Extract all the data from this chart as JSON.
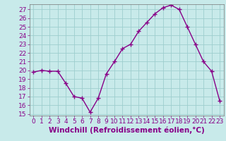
{
  "hours": [
    0,
    1,
    2,
    3,
    4,
    5,
    6,
    7,
    8,
    9,
    10,
    11,
    12,
    13,
    14,
    15,
    16,
    17,
    18,
    19,
    20,
    21,
    22,
    23
  ],
  "values": [
    19.8,
    20.0,
    19.9,
    19.9,
    18.5,
    17.0,
    16.8,
    15.2,
    16.8,
    19.6,
    21.0,
    22.5,
    23.0,
    24.5,
    25.5,
    26.5,
    27.2,
    27.5,
    27.0,
    25.0,
    23.0,
    21.0,
    19.9,
    16.5
  ],
  "line_color": "#880088",
  "marker": "+",
  "markersize": 4,
  "linewidth": 1.0,
  "markeredgewidth": 1.0,
  "xlabel": "Windchill (Refroidissement éolien,°C)",
  "ylim_min": 14.8,
  "ylim_max": 27.6,
  "xlim_min": -0.5,
  "xlim_max": 23.5,
  "yticks": [
    15,
    16,
    17,
    18,
    19,
    20,
    21,
    22,
    23,
    24,
    25,
    26,
    27
  ],
  "xticks": [
    0,
    1,
    2,
    3,
    4,
    5,
    6,
    7,
    8,
    9,
    10,
    11,
    12,
    13,
    14,
    15,
    16,
    17,
    18,
    19,
    20,
    21,
    22,
    23
  ],
  "bg_color": "#c8eaea",
  "grid_color": "#9ecece",
  "tick_label_fontsize": 6.5,
  "xlabel_fontsize": 7.5,
  "xlabel_color": "#880088"
}
